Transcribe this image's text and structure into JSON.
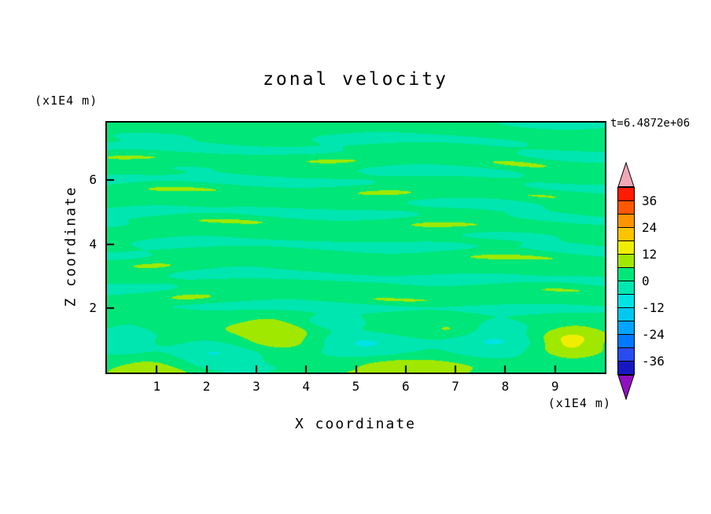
{
  "chart_data": {
    "type": "heatmap",
    "title": "zonal velocity",
    "time_label": "t=6.4872e+06",
    "xlabel": "X coordinate",
    "ylabel": "Z coordinate",
    "x_units_label": "(x1E4 m)",
    "y_units_label": "(x1E4 m)",
    "x_range": [
      0,
      10
    ],
    "y_range": [
      0,
      7.8
    ],
    "x_ticks": [
      1,
      2,
      3,
      4,
      5,
      6,
      7,
      8,
      9
    ],
    "y_ticks": [
      2,
      4,
      6
    ],
    "grid": false,
    "contour_interval": 6,
    "levels": [
      -42,
      -36,
      -30,
      -24,
      -18,
      -12,
      -6,
      0,
      6,
      12,
      18,
      24,
      30,
      36,
      42
    ],
    "colorbar": {
      "position": "right",
      "labels": [
        36,
        24,
        12,
        0,
        -12,
        -24,
        -36
      ],
      "over_color": "#f0a8b4",
      "under_color": "#9010c0",
      "bin_colors_low_to_high": [
        "#1818c0",
        "#284cf0",
        "#0078ff",
        "#00a4ff",
        "#00c8f0",
        "#00e4e4",
        "#00e6b0",
        "#00e678",
        "#a0e800",
        "#f0ee00",
        "#ffc400",
        "#ff9400",
        "#ff5800",
        "#ff1c00"
      ]
    },
    "field_summary": "Velocity field mostly 0 to 6 (spring green) with thin horizontal turquoise streaks of -6 to 0; below z of about 2 there are stronger anomalies: positive cells 6 to 18 (yellow-green and yellow cores) near x 3.4 and x 9.3 and along the bottom edge, negative cells -12 to -6 (cyan) near x 2, x 5 and x 7.7, separated from the streaky upper region by a thin turquoise line at z of about 2"
  }
}
